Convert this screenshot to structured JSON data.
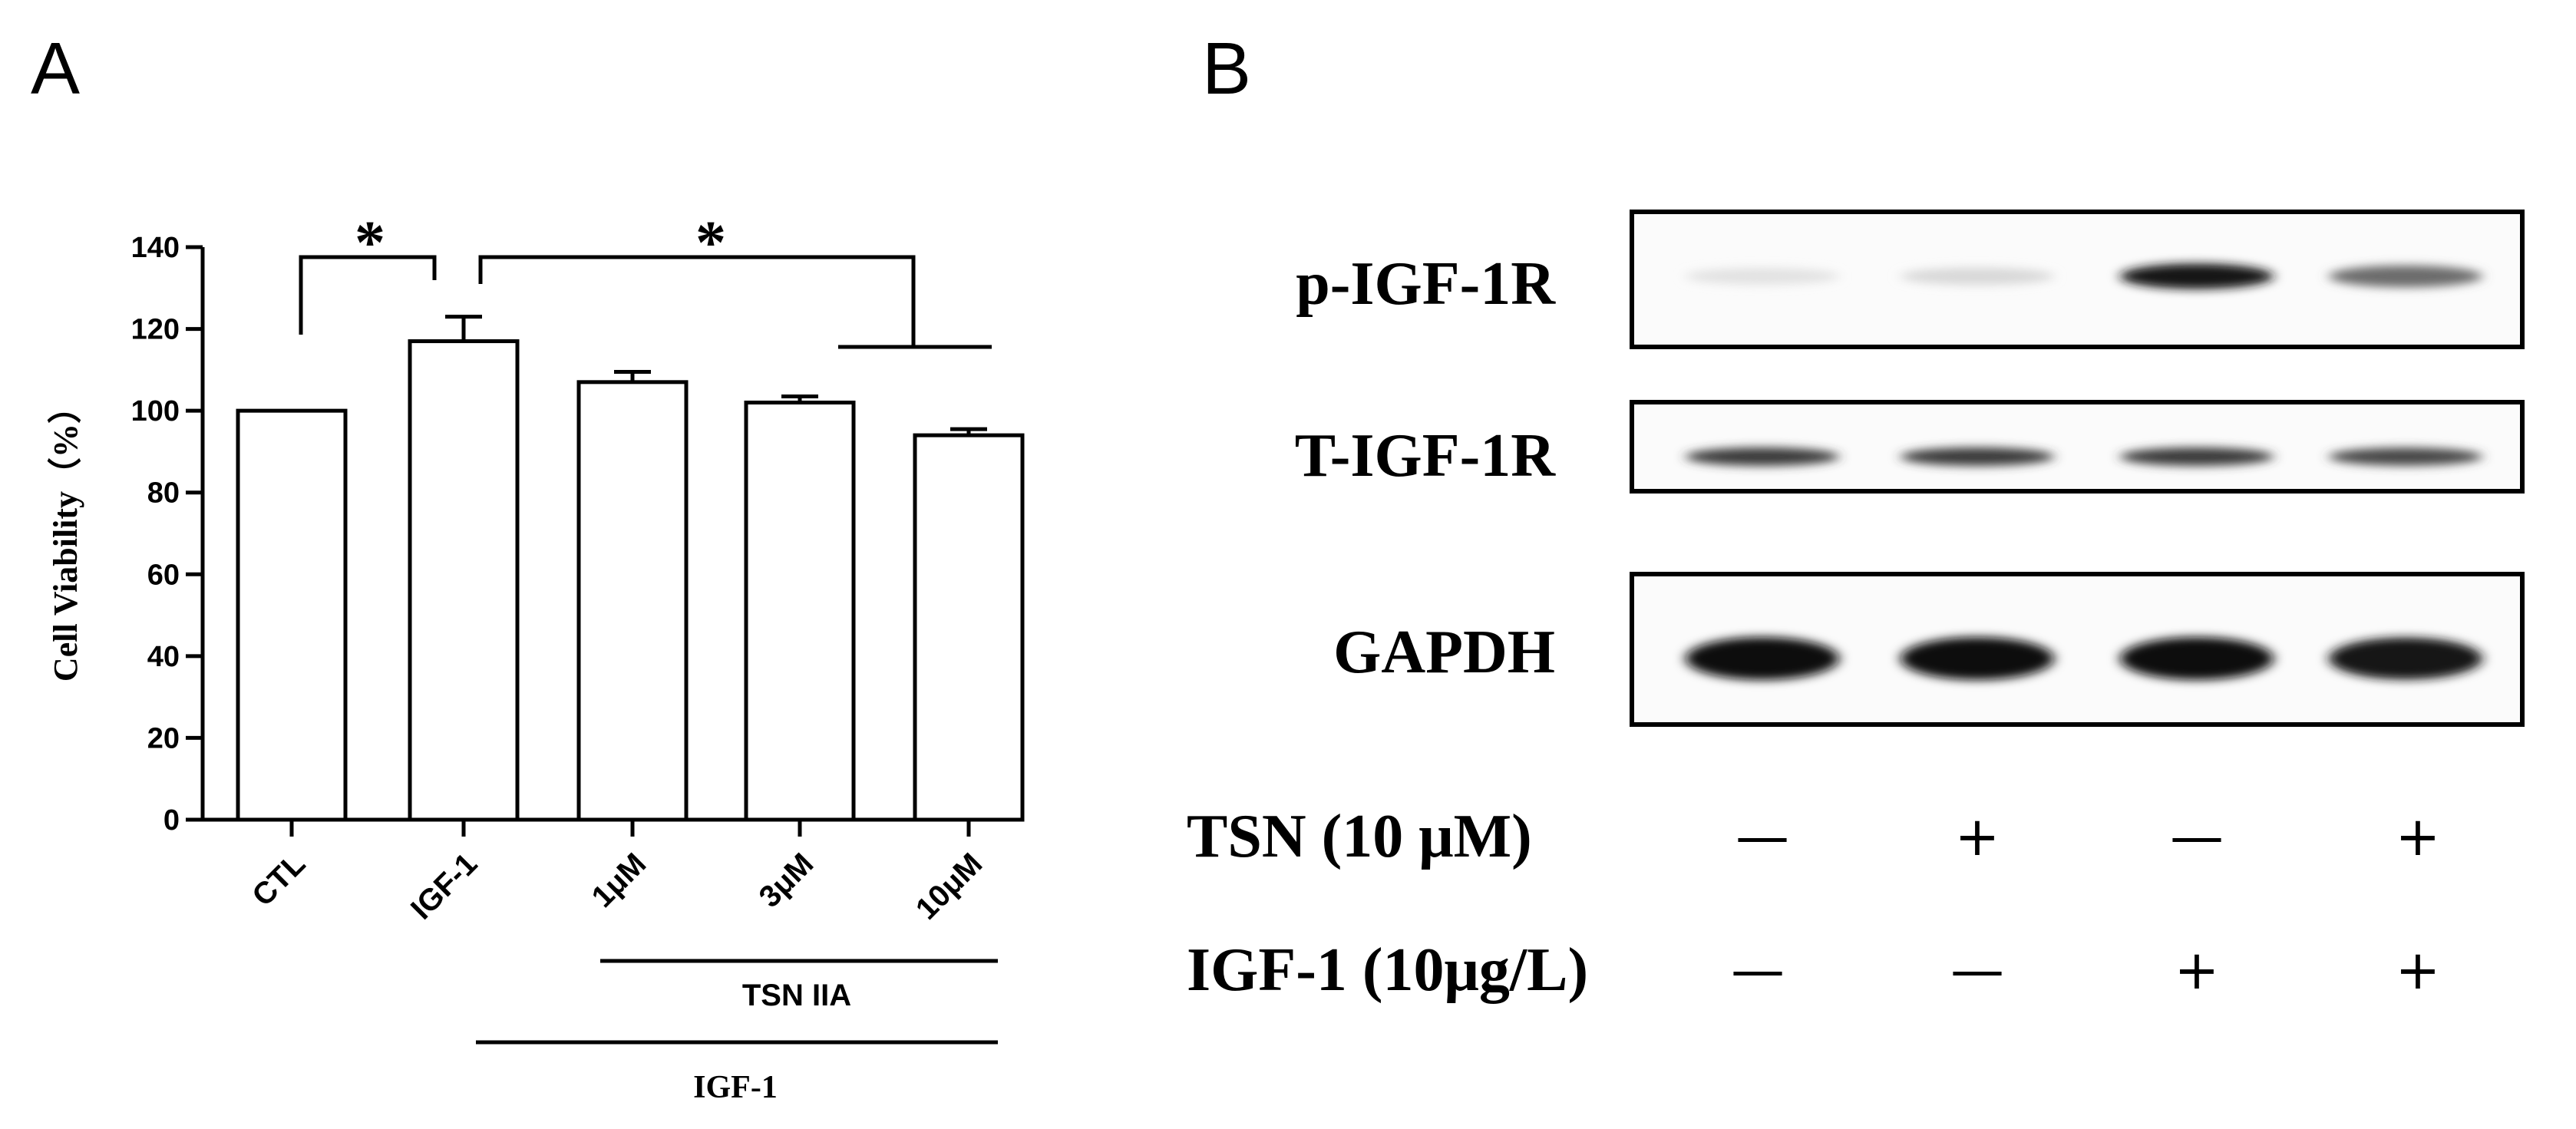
{
  "panels": {
    "a_label": "A",
    "b_label": "B"
  },
  "chart_data": {
    "type": "bar",
    "title": "",
    "ylabel": "Cell Viability（%）",
    "xlabel": "",
    "ylim": [
      0,
      140
    ],
    "yticks": [
      "0",
      "20",
      "40",
      "60",
      "80",
      "100",
      "120",
      "140"
    ],
    "categories": [
      "CTL",
      "IGF-1",
      "1μM",
      "3μM",
      "10μM"
    ],
    "values": [
      100,
      117,
      107,
      102,
      94
    ],
    "errors": [
      0,
      6,
      2.5,
      1.5,
      1.5
    ],
    "significance": [
      {
        "from": "CTL",
        "to": "IGF-1",
        "label": "*"
      },
      {
        "from": "IGF-1",
        "to": "1μM–10μM",
        "label": "*"
      }
    ],
    "group_labels": {
      "tsn": "TSN IIA",
      "igf": "IGF-1"
    },
    "grid": false,
    "legend": "none"
  },
  "blot": {
    "rows": [
      {
        "label": "p-IGF-1R",
        "intensities": [
          0.12,
          0.16,
          0.95,
          0.6
        ]
      },
      {
        "label": "T-IGF-1R",
        "intensities": [
          0.8,
          0.8,
          0.8,
          0.75
        ]
      },
      {
        "label": "GAPDH",
        "intensities": [
          1.0,
          1.0,
          1.0,
          0.95
        ]
      }
    ],
    "treatments": [
      {
        "label": "TSN (10 μM)",
        "signs": [
          "—",
          "+",
          "—",
          "+"
        ]
      },
      {
        "label": "IGF-1 (10μg/L)",
        "signs": [
          "—",
          "—",
          "+",
          "+"
        ]
      }
    ]
  }
}
